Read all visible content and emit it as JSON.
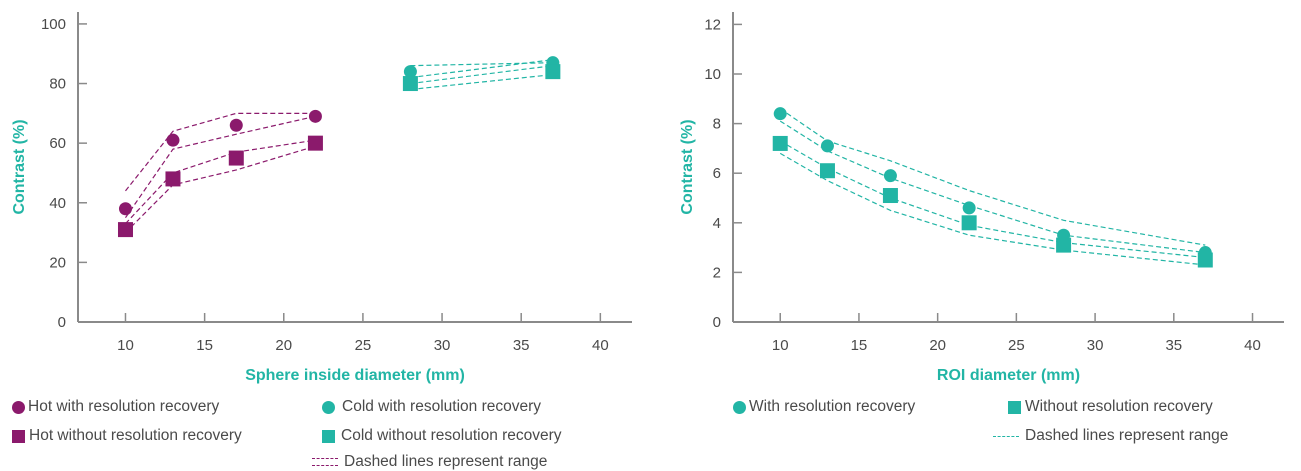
{
  "colors": {
    "purple": "#8b1a6c",
    "teal": "#22b5a5",
    "axis": "#8a8a8a"
  },
  "chart_data": [
    {
      "type": "line",
      "xlabel": "Sphere inside diameter (mm)",
      "ylabel": "Contrast (%)",
      "xlim": [
        7,
        42
      ],
      "ylim": [
        0,
        104
      ],
      "xticks": [
        10,
        15,
        20,
        25,
        30,
        35,
        40
      ],
      "yticks": [
        0,
        20,
        40,
        60,
        80,
        100
      ],
      "series": [
        {
          "name": "Hot with resolution recovery",
          "marker": "circle",
          "color": "#8b1a6c",
          "x": [
            10,
            13,
            17,
            22
          ],
          "y": [
            38,
            61,
            66,
            69
          ]
        },
        {
          "name": "Hot without resolution recovery",
          "marker": "square",
          "color": "#8b1a6c",
          "x": [
            10,
            13,
            17,
            22
          ],
          "y": [
            31,
            48,
            55,
            60
          ]
        },
        {
          "name": "Cold  with resolution recovery",
          "marker": "circle",
          "color": "#22b5a5",
          "x": [
            28,
            37
          ],
          "y": [
            84,
            87
          ]
        },
        {
          "name": "Cold without resolution recovery",
          "marker": "square",
          "color": "#22b5a5",
          "x": [
            28,
            37
          ],
          "y": [
            80,
            84
          ]
        }
      ],
      "ranges": [
        {
          "color": "#8b1a6c",
          "x": [
            10,
            13,
            17,
            22
          ],
          "y": [
            44,
            64,
            70,
            70
          ]
        },
        {
          "color": "#8b1a6c",
          "x": [
            10,
            13,
            17,
            22
          ],
          "y": [
            35,
            58,
            63,
            69
          ]
        },
        {
          "color": "#8b1a6c",
          "x": [
            10,
            13,
            17,
            22
          ],
          "y": [
            33,
            50,
            57,
            61
          ]
        },
        {
          "color": "#8b1a6c",
          "x": [
            10,
            13,
            17,
            22
          ],
          "y": [
            30,
            46,
            51,
            59
          ]
        },
        {
          "color": "#22b5a5",
          "x": [
            28,
            37
          ],
          "y": [
            82,
            88
          ]
        },
        {
          "color": "#22b5a5",
          "x": [
            28,
            37
          ],
          "y": [
            86,
            87
          ]
        },
        {
          "color": "#22b5a5",
          "x": [
            28,
            37
          ],
          "y": [
            80,
            86
          ]
        },
        {
          "color": "#22b5a5",
          "x": [
            28,
            37
          ],
          "y": [
            78,
            83
          ]
        }
      ],
      "legend": [
        {
          "marker": "circle",
          "color": "#8b1a6c",
          "label": "Hot with resolution recovery"
        },
        {
          "marker": "circle",
          "color": "#22b5a5",
          "label": "Cold  with resolution recovery"
        },
        {
          "marker": "square",
          "color": "#8b1a6c",
          "label": "Hot without resolution recovery"
        },
        {
          "marker": "square",
          "color": "#22b5a5",
          "label": "Cold without resolution recovery"
        },
        {
          "marker": "dashed",
          "color": "#8b1a6c",
          "label": "Dashed lines represent range"
        }
      ]
    },
    {
      "type": "line",
      "xlabel": "ROI diameter (mm)",
      "ylabel": "Contrast (%)",
      "xlim": [
        7,
        42
      ],
      "ylim": [
        0,
        12.5
      ],
      "xticks": [
        10,
        15,
        20,
        25,
        30,
        35,
        40
      ],
      "yticks": [
        0,
        2,
        4,
        6,
        8,
        10,
        12
      ],
      "series": [
        {
          "name": "With resolution recovery",
          "marker": "circle",
          "color": "#22b5a5",
          "x": [
            10,
            13,
            17,
            22,
            28,
            37
          ],
          "y": [
            8.4,
            7.1,
            5.9,
            4.6,
            3.5,
            2.8
          ]
        },
        {
          "name": "Without resolution recovery",
          "marker": "square",
          "color": "#22b5a5",
          "x": [
            10,
            13,
            17,
            22,
            28,
            37
          ],
          "y": [
            7.2,
            6.1,
            5.1,
            4.0,
            3.1,
            2.5
          ]
        }
      ],
      "ranges": [
        {
          "color": "#22b5a5",
          "x": [
            10,
            13,
            17,
            22,
            28,
            37
          ],
          "y": [
            8.6,
            7.3,
            6.5,
            5.3,
            4.1,
            3.1
          ]
        },
        {
          "color": "#22b5a5",
          "x": [
            10,
            13,
            17,
            22,
            28,
            37
          ],
          "y": [
            8.1,
            6.9,
            5.8,
            4.7,
            3.5,
            2.8
          ]
        },
        {
          "color": "#22b5a5",
          "x": [
            10,
            13,
            17,
            22,
            28,
            37
          ],
          "y": [
            7.3,
            6.2,
            5.0,
            3.9,
            3.2,
            2.6
          ]
        },
        {
          "color": "#22b5a5",
          "x": [
            10,
            13,
            17,
            22,
            28,
            37
          ],
          "y": [
            6.8,
            5.7,
            4.5,
            3.5,
            2.9,
            2.3
          ]
        }
      ],
      "legend": [
        {
          "marker": "circle",
          "color": "#22b5a5",
          "label": "With resolution recovery"
        },
        {
          "marker": "square",
          "color": "#22b5a5",
          "label": "Without resolution recovery"
        },
        {
          "marker": "dashed",
          "color": "#22b5a5",
          "label": "Dashed lines represent range"
        }
      ]
    }
  ]
}
